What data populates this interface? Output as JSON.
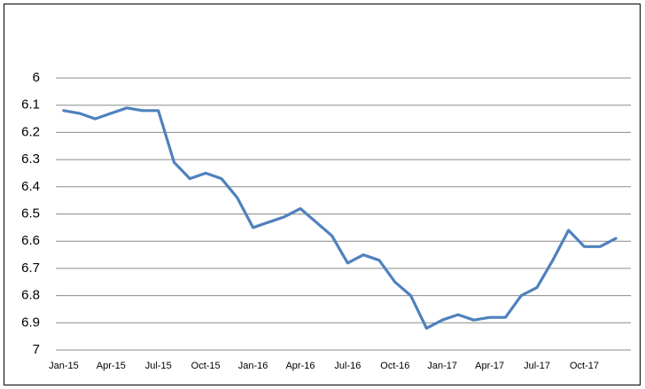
{
  "chart_data": {
    "type": "line",
    "categories": [
      "Jan-15",
      null,
      null,
      "Apr-15",
      null,
      null,
      "Jul-15",
      null,
      null,
      "Oct-15",
      null,
      null,
      "Jan-16",
      null,
      null,
      "Apr-16",
      null,
      null,
      "Jul-16",
      null,
      null,
      "Oct-16",
      null,
      null,
      "Jan-17",
      null,
      null,
      "Apr-17",
      null,
      null,
      "Jul-17",
      null,
      null,
      "Oct-17",
      null,
      null
    ],
    "series": [
      {
        "color": "#4f81bd",
        "values": [
          6.12,
          6.13,
          6.15,
          6.13,
          6.11,
          6.12,
          6.12,
          6.31,
          6.37,
          6.35,
          6.37,
          6.44,
          6.55,
          6.53,
          6.51,
          6.48,
          6.53,
          6.58,
          6.68,
          6.65,
          6.67,
          6.75,
          6.8,
          6.92,
          6.89,
          6.87,
          6.89,
          6.88,
          6.88,
          6.8,
          6.77,
          6.67,
          6.56,
          6.62,
          6.62,
          6.59
        ]
      }
    ],
    "ylim": [
      6,
      7
    ],
    "y_inverted": true,
    "yticks": [
      6,
      6.1,
      6.2,
      6.3,
      6.4,
      6.5,
      6.6,
      6.7,
      6.8,
      6.9,
      7
    ],
    "grid": true
  }
}
